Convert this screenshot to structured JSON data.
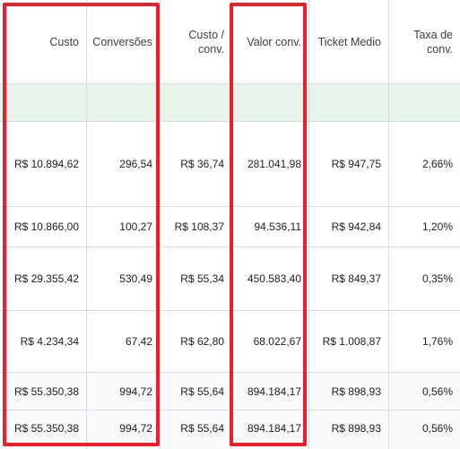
{
  "table": {
    "columns": [
      {
        "key": "custo",
        "label": "Custo"
      },
      {
        "key": "conversoes",
        "label": "Conversões"
      },
      {
        "key": "custo_conv_line1",
        "label": "Custo /"
      },
      {
        "key": "custo_conv_line2",
        "label": "conv."
      },
      {
        "key": "valor_conv",
        "label": "Valor conv."
      },
      {
        "key": "ticket_medio",
        "label": "Ticket Medio"
      },
      {
        "key": "taxa_line1",
        "label": "Taxa de"
      },
      {
        "key": "taxa_line2",
        "label": "conv."
      }
    ],
    "rows": [
      {
        "custo": "R$ 10.894,62",
        "conversoes": "296,54",
        "custo_conv": "R$ 36,74",
        "valor_conv": "281.041,98",
        "ticket_medio": "R$ 947,75",
        "taxa": "2,66%"
      },
      {
        "custo": "R$ 10.866,00",
        "conversoes": "100,27",
        "custo_conv": "R$ 108,37",
        "valor_conv": "94.536,11",
        "ticket_medio": "R$ 942,84",
        "taxa": "1,20%"
      },
      {
        "custo": "R$ 29.355,42",
        "conversoes": "530,49",
        "custo_conv": "R$ 55,34",
        "valor_conv": "450.583,40",
        "ticket_medio": "R$ 849,37",
        "taxa": "0,35%"
      },
      {
        "custo": "R$ 4.234,34",
        "conversoes": "67,42",
        "custo_conv": "R$ 62,80",
        "valor_conv": "68.022,67",
        "ticket_medio": "R$ 1.008,87",
        "taxa": "1,76%"
      },
      {
        "custo": "R$ 55.350,38",
        "conversoes": "994,72",
        "custo_conv": "R$ 55,64",
        "valor_conv": "894.184,17",
        "ticket_medio": "R$ 898,93",
        "taxa": "0,56%"
      },
      {
        "custo": "R$ 55.350,38",
        "conversoes": "994,72",
        "custo_conv": "R$ 55,64",
        "valor_conv": "894.184,17",
        "ticket_medio": "R$ 898,93",
        "taxa": "0,56%"
      }
    ]
  },
  "colors": {
    "highlight_border": "#e8202a",
    "header_band": "#e6f4ea",
    "grid_line": "#dadce0",
    "total_row_bg": "#f8f9fa"
  }
}
